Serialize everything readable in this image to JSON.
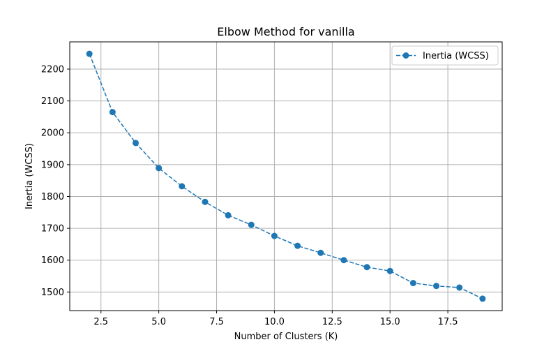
{
  "chart_data": {
    "type": "line",
    "title": "Elbow Method for vanilla",
    "xlabel": "Number of Clusters (K)",
    "ylabel": "Inertia (WCSS)",
    "x": [
      2,
      3,
      4,
      5,
      6,
      7,
      8,
      9,
      10,
      11,
      12,
      13,
      14,
      15,
      16,
      17,
      18,
      19
    ],
    "series": [
      {
        "name": "Inertia (WCSS)",
        "color": "#1f77b4",
        "line_style": "dashed",
        "marker": "circle",
        "values": [
          2248,
          2065,
          1968,
          1889,
          1832,
          1783,
          1741,
          1711,
          1676,
          1645,
          1623,
          1600,
          1578,
          1566,
          1528,
          1519,
          1514,
          1479
        ]
      }
    ],
    "xlim": [
      1.15,
      19.85
    ],
    "ylim": [
      1441.55,
      2285.45
    ],
    "xticks": [
      2.5,
      5.0,
      7.5,
      10.0,
      12.5,
      15.0,
      17.5
    ],
    "xtick_labels": [
      "2.5",
      "5.0",
      "7.5",
      "10.0",
      "12.5",
      "15.0",
      "17.5"
    ],
    "yticks": [
      1500,
      1600,
      1700,
      1800,
      1900,
      2000,
      2100,
      2200
    ],
    "ytick_labels": [
      "1500",
      "1600",
      "1700",
      "1800",
      "1900",
      "2000",
      "2100",
      "2200"
    ],
    "grid": true,
    "legend_position": "top-right"
  }
}
